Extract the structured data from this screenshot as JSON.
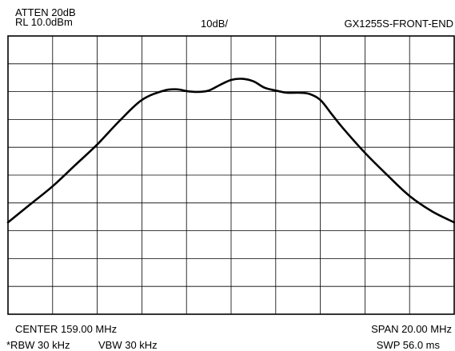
{
  "header": {
    "attenuation": "ATTEN 20dB",
    "ref_level": "RL 10.0dBm",
    "scale": "10dB/",
    "device": "GX1255S-FRONT-END"
  },
  "footer": {
    "center": "CENTER  159.00 MHz",
    "span": "SPAN  20.00 MHz",
    "rbw": "*RBW  30 kHz",
    "vbw": "VBW  30 kHz",
    "sweep": "SWP  56.0 ms"
  },
  "chart_data": {
    "type": "line",
    "xlim": [
      149.0,
      169.0
    ],
    "ylim": [
      -90.0,
      10.0
    ],
    "x_divisions": 10,
    "y_divisions": 10,
    "grid": true,
    "series": [
      {
        "color": "#000000",
        "x": [
          149.0,
          150.0,
          151.0,
          152.0,
          153.0,
          154.0,
          155.0,
          156.0,
          156.6,
          157.0,
          157.5,
          158.0,
          158.5,
          159.0,
          159.5,
          160.0,
          160.5,
          161.0,
          161.5,
          162.0,
          162.5,
          163.0,
          163.5,
          164.0,
          165.0,
          166.0,
          167.0,
          168.0,
          169.0
        ],
        "y": [
          -57.0,
          -50.5,
          -44.0,
          -36.5,
          -29.0,
          -20.5,
          -13.0,
          -9.6,
          -9.2,
          -9.8,
          -10.1,
          -9.6,
          -7.6,
          -5.8,
          -5.4,
          -6.3,
          -8.6,
          -9.6,
          -10.4,
          -10.4,
          -10.8,
          -13.0,
          -18.0,
          -23.0,
          -32.0,
          -40.0,
          -47.5,
          -53.0,
          -57.0
        ]
      }
    ]
  }
}
